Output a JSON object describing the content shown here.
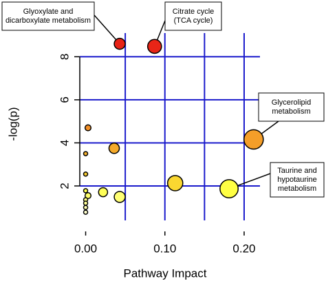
{
  "chart_data": {
    "type": "scatter",
    "x_label": "Pathway Impact",
    "y_label": "-log(p)",
    "x": [
      0.043,
      0.087,
      0.212,
      0.003,
      0.036,
      0.0,
      0.0,
      0.113,
      0.181,
      0.0,
      0.022,
      0.043,
      0.003,
      0.0,
      0.0,
      0.0,
      0.0
    ],
    "values": [
      8.6,
      8.48,
      4.16,
      4.7,
      3.75,
      3.5,
      2.55,
      2.13,
      1.87,
      1.78,
      1.71,
      1.49,
      1.55,
      1.36,
      1.2,
      1.0,
      0.78
    ],
    "xlim": [
      -0.01,
      0.22
    ],
    "ylim": [
      0.4,
      9.1
    ],
    "xticks": [
      {
        "value": 0,
        "label": "0.00"
      },
      {
        "value": 0.1,
        "label": "0.10"
      },
      {
        "value": 0.2,
        "label": "0.20"
      }
    ],
    "yticks": [
      2,
      4,
      6,
      8
    ],
    "xgrid": [
      0.05,
      0.1,
      0.15,
      0.2
    ],
    "grid": true,
    "grid_color": "#1a1acc",
    "annotations": [
      [
        "Glyoxylate and",
        "dicarboxylate metabolism"
      ],
      [
        "Citrate cycle",
        "(TCA cycle)"
      ],
      [
        "Glycerolipid",
        "metabolism"
      ],
      [
        "Taurine and",
        "hypotaurine",
        "metabolism"
      ]
    ]
  }
}
